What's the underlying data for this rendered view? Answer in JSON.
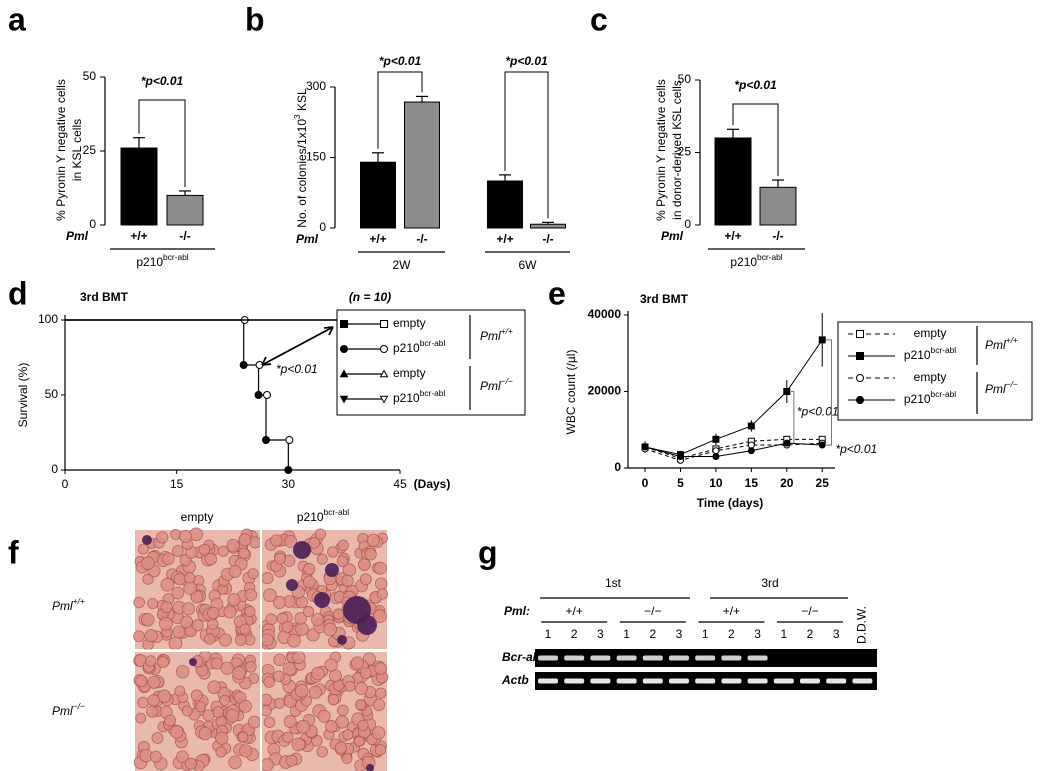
{
  "panels": [
    "a",
    "b",
    "c",
    "d",
    "e",
    "f",
    "g"
  ],
  "chart_data": [
    {
      "type": "bar",
      "ylabel": [
        "% Pyronin Y negative cells",
        "in KSL cells"
      ],
      "categories": [
        "+/+",
        "-/-"
      ],
      "values": [
        26,
        10
      ],
      "errors": [
        3.5,
        1.5
      ],
      "colors": [
        "#000000",
        "#8c8c8c"
      ],
      "ylim": [
        0,
        50
      ],
      "yticks": [
        0,
        25,
        50
      ],
      "row_label": "Pml",
      "groups": [
        {
          "text": "p210",
          "sup": "bcr-abl"
        }
      ],
      "annotations": [
        "*p<0.01"
      ]
    },
    {
      "type": "bar",
      "ylabel": [
        "No. of colonies/1x10",
        "3",
        " KSL"
      ],
      "categories": [
        "+/+",
        "-/-",
        "+/+",
        "-/-"
      ],
      "values": [
        140,
        268,
        100,
        8
      ],
      "errors": [
        20,
        12,
        13,
        4
      ],
      "colors": [
        "#000000",
        "#8c8c8c",
        "#000000",
        "#8c8c8c"
      ],
      "ylim": [
        0,
        300
      ],
      "yticks": [
        0,
        150,
        300
      ],
      "row_label": "Pml",
      "groups": [
        {
          "text": "2W"
        },
        {
          "text": "6W"
        }
      ],
      "annotations": [
        "*p<0.01",
        "*p<0.01"
      ]
    },
    {
      "type": "bar",
      "ylabel": [
        "% Pyronin Y negative cells",
        "in donor-derived KSL cells"
      ],
      "categories": [
        "+/+",
        "-/-"
      ],
      "values": [
        30,
        13
      ],
      "errors": [
        3,
        2.5
      ],
      "colors": [
        "#000000",
        "#8c8c8c"
      ],
      "ylim": [
        0,
        50
      ],
      "yticks": [
        0,
        25,
        50
      ],
      "row_label": "Pml",
      "groups": [
        {
          "text": "p210",
          "sup": "bcr-abl"
        }
      ],
      "annotations": [
        "*p<0.01"
      ]
    },
    {
      "type": "step",
      "title": "3rd BMT",
      "annotations": [
        "(n = 10)",
        "*p<0.01"
      ],
      "ylabel": "Survival (%)",
      "xlabel": "(Days)",
      "xlim": [
        0,
        45
      ],
      "ylim": [
        0,
        100
      ],
      "xticks": [
        0,
        15,
        30,
        45
      ],
      "yticks": [
        0,
        50,
        100
      ],
      "series": [
        {
          "name": "empty",
          "marker": "square",
          "color": "#000000",
          "x": [
            0,
            45
          ],
          "values": [
            100,
            100
          ]
        },
        {
          "name": "p210",
          "name_sup": "bcr-abl",
          "marker": "circle",
          "color": "#000000",
          "x": [
            0,
            24,
            26,
            27,
            30
          ],
          "values": [
            100,
            70,
            50,
            20,
            0
          ]
        },
        {
          "name": "empty",
          "marker": "triangle",
          "color": "#000000",
          "x": [
            0,
            45
          ],
          "values": [
            100,
            100
          ]
        },
        {
          "name": "p210",
          "name_sup": "bcr-abl",
          "marker": "triangle-down",
          "color": "#000000",
          "x": [
            0,
            45
          ],
          "values": [
            100,
            100
          ]
        }
      ],
      "legend_groups": [
        {
          "text": "Pml",
          "sup": "+/+"
        },
        {
          "text": "Pml",
          "sup": "−/−"
        }
      ]
    },
    {
      "type": "line",
      "title": "3rd BMT",
      "ylabel": "WBC count (/µl)",
      "xlabel": "Time (days)",
      "x": [
        0,
        5,
        10,
        15,
        20,
        25
      ],
      "xlim": [
        -2.4,
        26.8
      ],
      "ylim": [
        0,
        40000
      ],
      "xticks": [
        0,
        5,
        10,
        15,
        20,
        25
      ],
      "yticks": [
        0,
        20000,
        40000
      ],
      "series": [
        {
          "name": "empty",
          "marker": "square",
          "filled": false,
          "dashed": true,
          "color": "#000000",
          "values": [
            5500,
            2500,
            5000,
            7000,
            7500,
            7500
          ]
        },
        {
          "name": "p210",
          "name_sup": "bcr-abl",
          "marker": "square",
          "filled": true,
          "dashed": false,
          "color": "#000000",
          "values": [
            5500,
            3500,
            7500,
            11000,
            20000,
            33500
          ],
          "errors": [
            1500,
            1000,
            1500,
            1500,
            3000,
            7000
          ]
        },
        {
          "name": "empty",
          "marker": "circle",
          "filled": false,
          "dashed": true,
          "color": "#000000",
          "values": [
            5000,
            2000,
            4500,
            6000,
            6000,
            6500
          ]
        },
        {
          "name": "p210",
          "name_sup": "bcr-abl",
          "marker": "circle",
          "filled": true,
          "dashed": false,
          "color": "#000000",
          "values": [
            5500,
            3000,
            3000,
            4500,
            6500,
            6000
          ]
        }
      ],
      "legend_groups": [
        {
          "text": "Pml",
          "sup": "+/+"
        },
        {
          "text": "Pml",
          "sup": "−/−"
        }
      ],
      "annotations": [
        "*p<0.01",
        "*p<0.01"
      ]
    }
  ],
  "image_panel": {
    "columns": [
      {
        "text": "empty"
      },
      {
        "text": "p210",
        "sup": "bcr-abl"
      }
    ],
    "rows": [
      {
        "text": "Pml",
        "sup": "+/+"
      },
      {
        "text": "Pml",
        "sup": "−/−"
      }
    ]
  },
  "gel": {
    "rounds": [
      "1st",
      "3rd"
    ],
    "row_label": "Pml:",
    "genotypes": [
      "+/+",
      "−/−",
      "+/+",
      "−/−"
    ],
    "lanes": [
      "1",
      "2",
      "3",
      "1",
      "2",
      "3",
      "1",
      "2",
      "3",
      "1",
      "2",
      "3",
      "D.D.W."
    ],
    "genes": [
      "Bcr-abl",
      "Actb"
    ]
  }
}
